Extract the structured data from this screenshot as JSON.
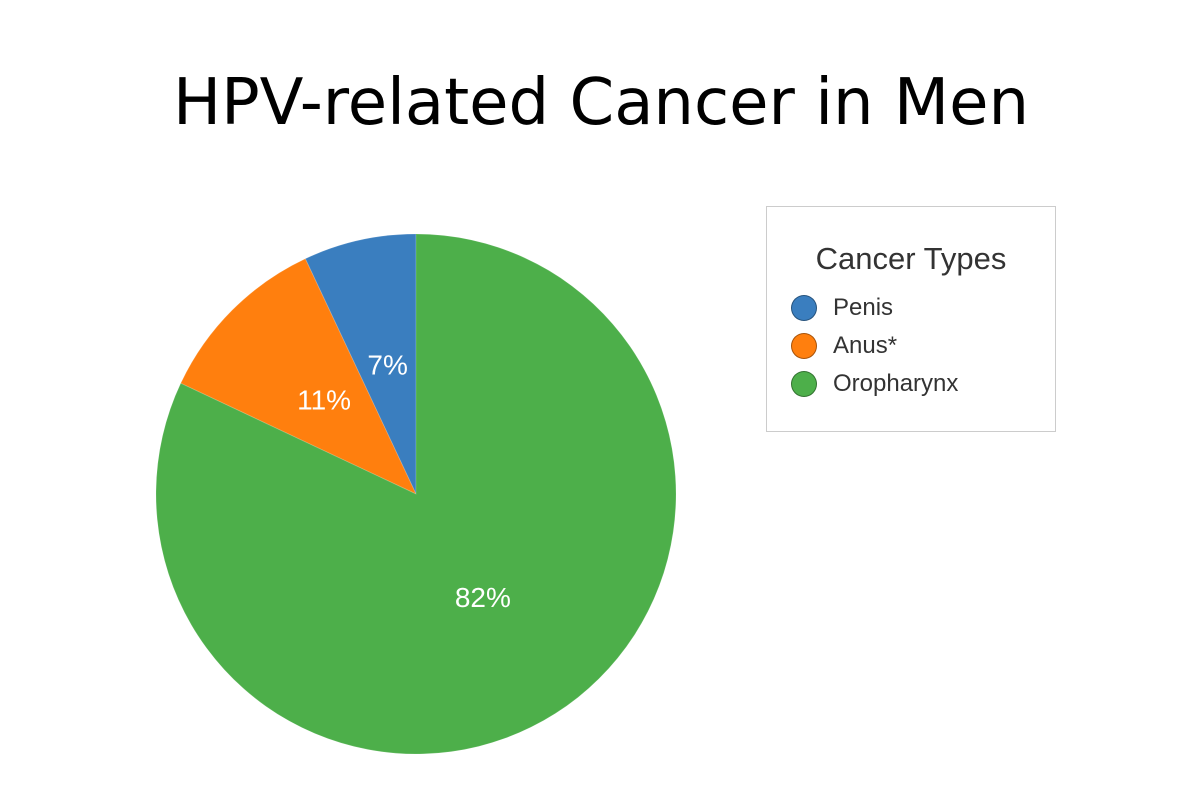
{
  "chart_data": {
    "type": "pie",
    "title": "HPV-related Cancer in Men",
    "legend_title": "Cancer Types",
    "legend_position": "right",
    "categories": [
      "Penis",
      "Anus*",
      "Oropharynx"
    ],
    "values": [
      7,
      11,
      82
    ],
    "labels": [
      "7%",
      "11%",
      "82%"
    ],
    "colors": [
      "#3a7ebf",
      "#ff7f0e",
      "#4daf4a"
    ]
  }
}
